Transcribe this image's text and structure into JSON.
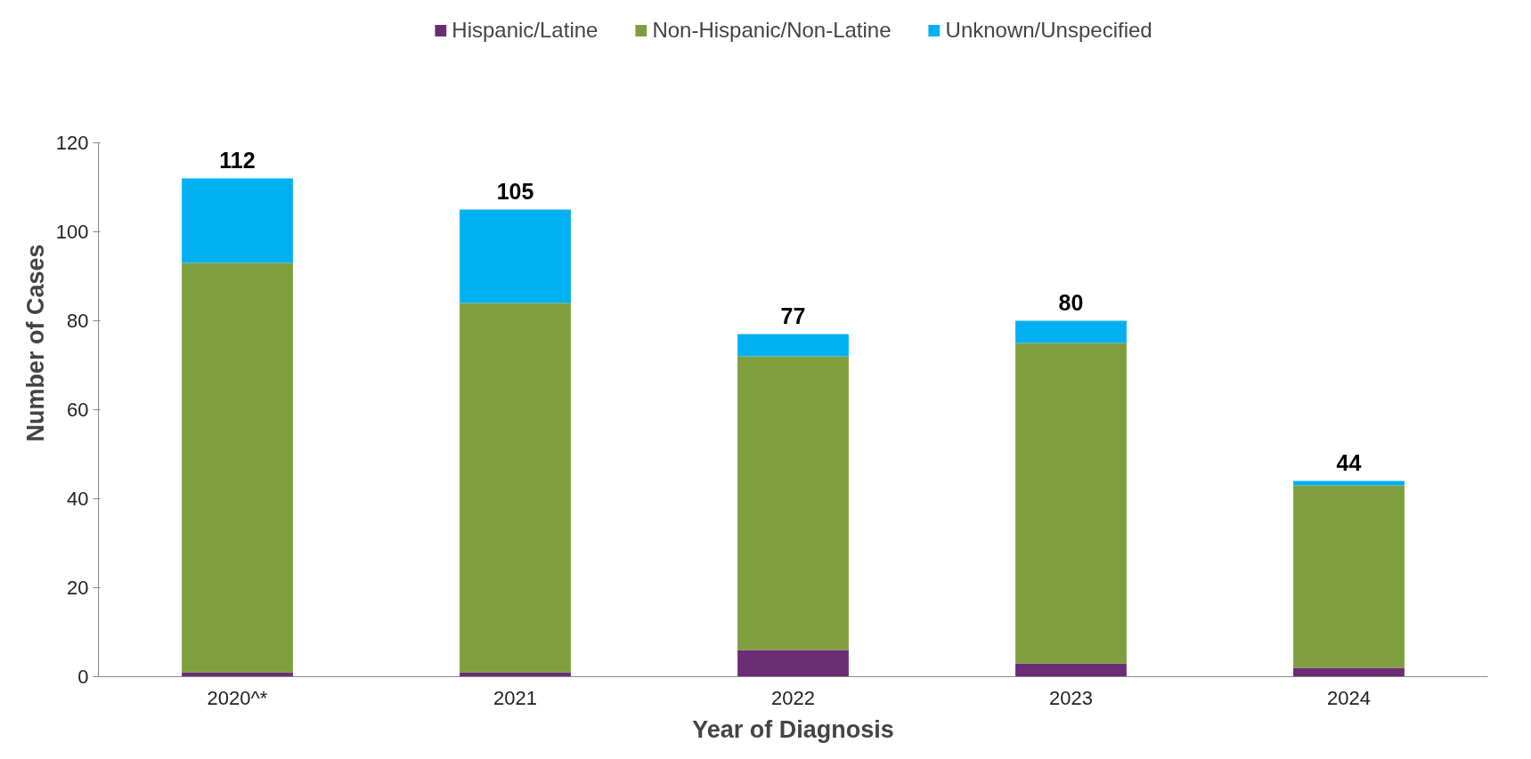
{
  "chart_data": {
    "type": "bar",
    "stacked": true,
    "xlabel": "Year of Diagnosis",
    "ylabel": "Number of Cases",
    "categories": [
      "2020^*",
      "2021",
      "2022",
      "2023",
      "2024"
    ],
    "series": [
      {
        "name": "Hispanic/Latine",
        "color": "#6b2d73",
        "values": [
          1,
          1,
          6,
          3,
          2
        ]
      },
      {
        "name": "Non-Hispanic/Non-Latine",
        "color": "#7f9f3f",
        "values": [
          92,
          83,
          66,
          72,
          41
        ]
      },
      {
        "name": "Unknown/Unspecified",
        "color": "#00b0f0",
        "values": [
          19,
          21,
          5,
          5,
          1
        ]
      }
    ],
    "totals": [
      "112",
      "105",
      "77",
      "80",
      "44"
    ],
    "ylim": [
      0,
      120
    ],
    "yticks": [
      0,
      20,
      40,
      60,
      80,
      100,
      120
    ],
    "grid": false,
    "legend": "top"
  }
}
